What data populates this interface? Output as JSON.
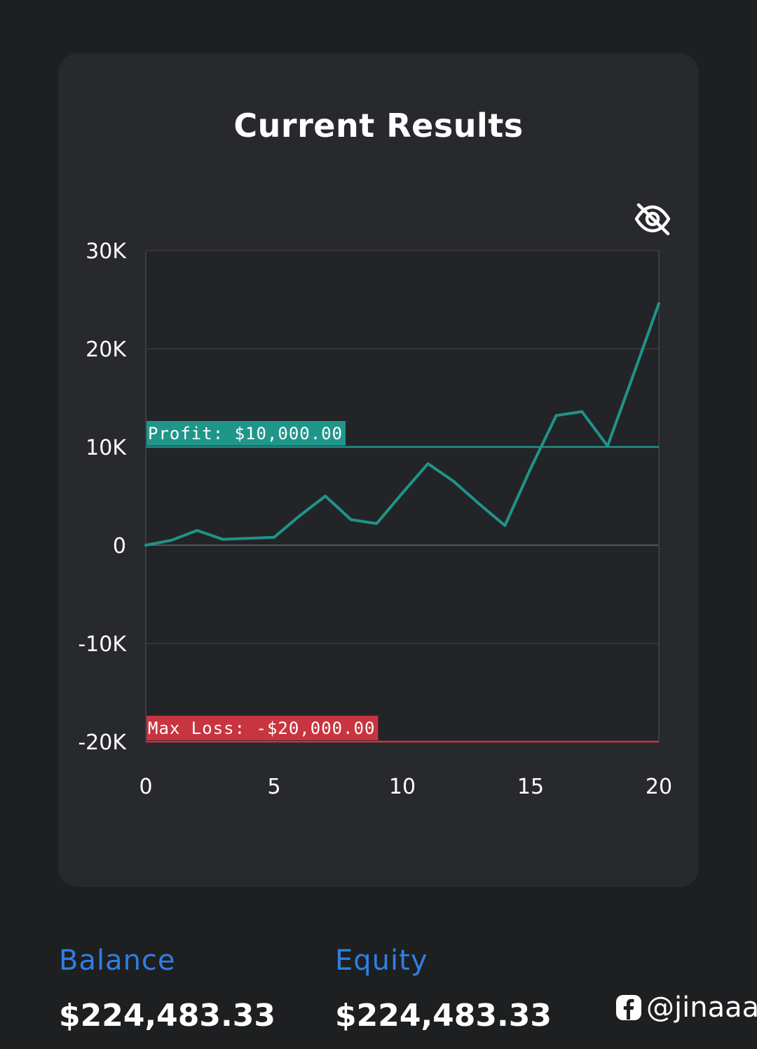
{
  "chart_data": {
    "type": "line",
    "title": "Current Results",
    "xlim": [
      0,
      20
    ],
    "ylim": [
      -20000,
      30000
    ],
    "x_ticks": [
      "0",
      "5",
      "10",
      "15",
      "20"
    ],
    "x_tick_values": [
      0,
      5,
      10,
      15,
      20
    ],
    "y_ticks": [
      "30K",
      "20K",
      "10K",
      "0",
      "-10K",
      "-20K"
    ],
    "y_tick_values": [
      30000,
      20000,
      10000,
      0,
      -10000,
      -20000
    ],
    "grid": true,
    "series": [
      {
        "x": [
          0,
          1,
          2,
          3,
          4,
          5,
          6,
          7,
          8,
          9,
          10,
          11,
          12,
          13,
          14,
          15,
          16,
          17,
          18,
          19,
          20
        ],
        "y": [
          0,
          500,
          1500,
          600,
          700,
          800,
          3000,
          5000,
          2600,
          2200,
          5300,
          8300,
          6500,
          4200,
          2000,
          7800,
          13200,
          13600,
          10100,
          17300,
          24600
        ],
        "color": "#1f9488"
      }
    ],
    "reference_lines": [
      {
        "label": "Profit: $10,000.00",
        "value": 10000,
        "color": "#1f9488",
        "label_color": "#20968a"
      },
      {
        "label": "Max Loss: -$20,000.00",
        "value": -20000,
        "color": "#c8343f",
        "label_color": "#c8343f"
      }
    ]
  },
  "summary": {
    "balance_label": "Balance",
    "balance_value": "$224,483.33",
    "equity_label": "Equity",
    "equity_value": "$224,483.33"
  },
  "watermark": {
    "icon": "facebook-icon",
    "handle": "@jinaaa"
  },
  "icons": {
    "visibility_toggle": "eye-slash-icon"
  },
  "colors": {
    "page_background": "#1e1f21",
    "card_background": "#28292c",
    "plot_background": "#232428",
    "accent_blue": "#2f7fe3",
    "line": "#1f9488",
    "loss": "#c8343f"
  }
}
